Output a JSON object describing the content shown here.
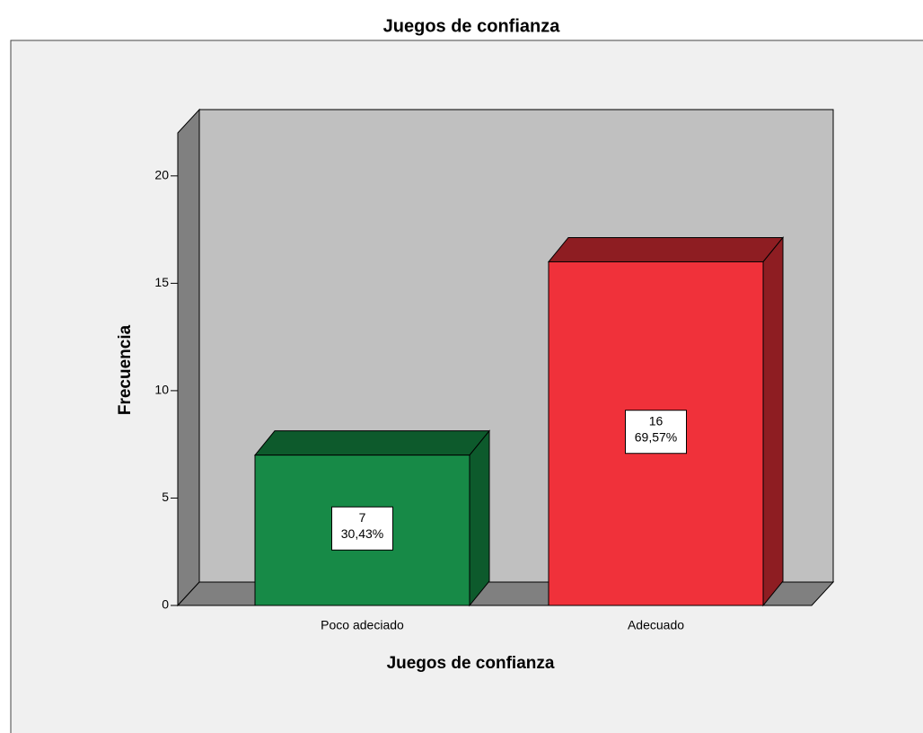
{
  "chart_data": {
    "type": "bar3d",
    "title": "Juegos de confianza",
    "x_label": "Juegos de confianza",
    "y_label": "Frecuencia",
    "categories": [
      "Poco adeciado",
      "Adecuado"
    ],
    "values": [
      7,
      16
    ],
    "percent_labels": [
      "30,43%",
      "69,57%"
    ],
    "colors": [
      "#178a47",
      "#f0313a"
    ],
    "side_colors": [
      "#0d5a2c",
      "#8e1d22"
    ],
    "ylim": [
      0,
      22
    ],
    "yticks": [
      0,
      5,
      10,
      15,
      20
    ]
  }
}
